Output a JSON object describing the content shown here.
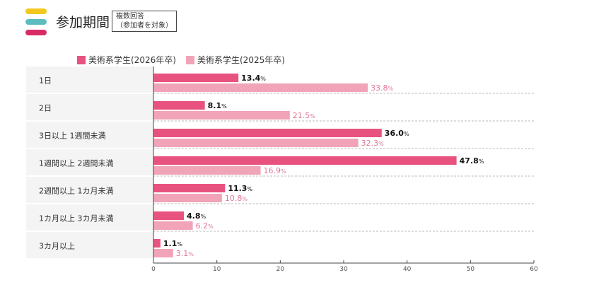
{
  "header": {
    "title": "参加期間",
    "note_line1": "複数回答",
    "note_line2": "（参加者を対象）",
    "deco_colors": [
      "#f2c81e",
      "#5cbcc0",
      "#d92a68"
    ]
  },
  "chart_data": {
    "type": "bar",
    "orientation": "horizontal",
    "categories": [
      "1日",
      "2日",
      "3日以上 1週間未満",
      "1週間以上 2週間未満",
      "2週間以上 1カ月未満",
      "1カ月以上 3カ月未満",
      "3カ月以上"
    ],
    "series": [
      {
        "name": "美術系学生(2026年卒)",
        "color": "#e8527f",
        "label_color": "#111111",
        "values": [
          13.4,
          8.1,
          36.0,
          47.8,
          11.3,
          4.8,
          1.1
        ]
      },
      {
        "name": "美術系学生(2025年卒)",
        "color": "#f1a3b8",
        "label_color": "#e07898",
        "values": [
          33.8,
          21.5,
          32.3,
          16.9,
          10.8,
          6.2,
          3.1
        ]
      }
    ],
    "value_suffix": "%",
    "xlim": [
      0,
      60
    ],
    "xticks": [
      0,
      10,
      20,
      30,
      40,
      50,
      60
    ],
    "legend_position": "top"
  }
}
